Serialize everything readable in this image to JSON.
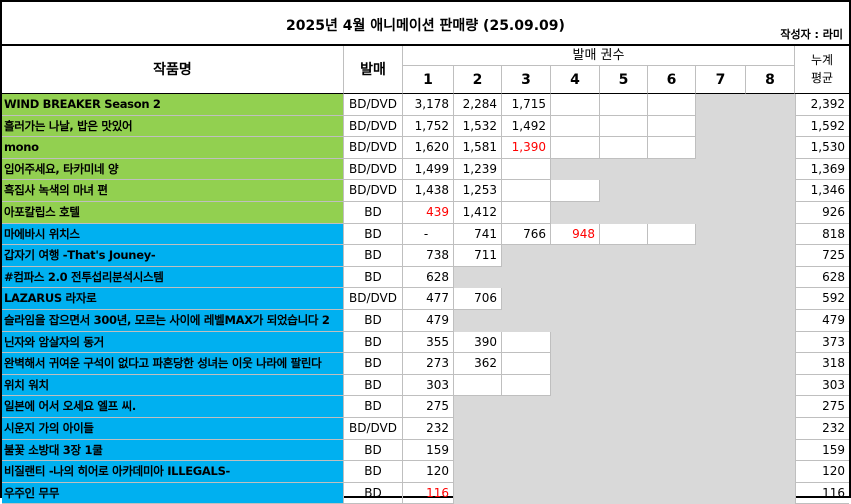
{
  "title": "2025년 4월 애니메이션 판매량 (25.09.09)",
  "author": "작성자 : 라미",
  "headers": {
    "work": "작품명",
    "release": "발매",
    "volumes_group": "발매 권수",
    "avg_line1": "누계",
    "avg_line2": "평균",
    "volume_numbers": [
      "1",
      "2",
      "3",
      "4",
      "5",
      "6",
      "7",
      "8"
    ]
  },
  "colors": {
    "green_group": "#92d050",
    "blue_group": "#00b0f0",
    "disabled_cell": "#d9d9d9",
    "highlight_text": "#ff0000"
  },
  "rows": [
    {
      "name": "WIND BREAKER Season 2",
      "group": "green",
      "media": "BD/DVD",
      "vols": [
        "3,178",
        "2,284",
        "1,715",
        "",
        "",
        "",
        "",
        ""
      ],
      "disabled_from": 7,
      "red": [],
      "avg": "2,392"
    },
    {
      "name": "흘러가는 나날, 밥은 맛있어",
      "group": "green",
      "media": "BD/DVD",
      "vols": [
        "1,752",
        "1,532",
        "1,492",
        "",
        "",
        "",
        "",
        ""
      ],
      "disabled_from": 7,
      "red": [],
      "avg": "1,592"
    },
    {
      "name": "mono",
      "group": "green",
      "media": "BD/DVD",
      "vols": [
        "1,620",
        "1,581",
        "1,390",
        "",
        "",
        "",
        "",
        ""
      ],
      "disabled_from": 7,
      "red": [
        3
      ],
      "avg": "1,530"
    },
    {
      "name": "입어주세요, 타카미네 양",
      "group": "green",
      "media": "BD/DVD",
      "vols": [
        "1,499",
        "1,239",
        "",
        "",
        "",
        "",
        "",
        ""
      ],
      "disabled_from": 4,
      "red": [],
      "avg": "1,369"
    },
    {
      "name": "흑집사 녹색의 마녀 편",
      "group": "green",
      "media": "BD/DVD",
      "vols": [
        "1,438",
        "1,253",
        "",
        "",
        "",
        "",
        "",
        ""
      ],
      "disabled_from": 5,
      "red": [],
      "avg": "1,346"
    },
    {
      "name": "아포칼립스 호텔",
      "group": "green",
      "media": "BD",
      "vols": [
        "439",
        "1,412",
        "",
        "",
        "",
        "",
        "",
        ""
      ],
      "disabled_from": 4,
      "red": [
        1
      ],
      "avg": "926"
    },
    {
      "name": "마에바시 위치스",
      "group": "blue",
      "media": "BD",
      "vols": [
        "-",
        "741",
        "766",
        "948",
        "",
        "",
        "",
        ""
      ],
      "disabled_from": 7,
      "red": [
        4
      ],
      "avg": "818"
    },
    {
      "name": "갑자기 여행 -That's Jouney-",
      "group": "blue",
      "media": "BD",
      "vols": [
        "738",
        "711",
        "",
        "",
        "",
        "",
        "",
        ""
      ],
      "disabled_from": 3,
      "red": [],
      "avg": "725"
    },
    {
      "name": "#컴파스 2.0 전투섭리분석시스템",
      "group": "blue",
      "media": "BD",
      "vols": [
        "628",
        "",
        "",
        "",
        "",
        "",
        "",
        ""
      ],
      "disabled_from": 2,
      "red": [],
      "avg": "628"
    },
    {
      "name": "LAZARUS 라자로",
      "group": "blue",
      "media": "BD/DVD",
      "vols": [
        "477",
        "706",
        "",
        "",
        "",
        "",
        "",
        ""
      ],
      "disabled_from": 3,
      "red": [],
      "avg": "592"
    },
    {
      "name": "슬라임을 잡으면서 300년, 모르는 사이에 레벨MAX가 되었습니다 2",
      "group": "blue",
      "media": "BD",
      "vols": [
        "479",
        "",
        "",
        "",
        "",
        "",
        "",
        ""
      ],
      "disabled_from": 2,
      "red": [],
      "avg": "479"
    },
    {
      "name": "닌자와 암살자의 동거",
      "group": "blue",
      "media": "BD",
      "vols": [
        "355",
        "390",
        "",
        "",
        "",
        "",
        "",
        ""
      ],
      "disabled_from": 4,
      "red": [],
      "avg": "373"
    },
    {
      "name": "완벽해서 귀여운 구석이 없다고 파혼당한 성녀는 이웃 나라에 팔린다",
      "group": "blue",
      "media": "BD",
      "vols": [
        "273",
        "362",
        "",
        "",
        "",
        "",
        "",
        ""
      ],
      "disabled_from": 4,
      "red": [],
      "avg": "318"
    },
    {
      "name": "위치 워치",
      "group": "blue",
      "media": "BD",
      "vols": [
        "303",
        "",
        "",
        "",
        "",
        "",
        "",
        ""
      ],
      "disabled_from": 4,
      "red": [],
      "avg": "303"
    },
    {
      "name": "일본에 어서 오세요 엘프 씨.",
      "group": "blue",
      "media": "BD",
      "vols": [
        "275",
        "",
        "",
        "",
        "",
        "",
        "",
        ""
      ],
      "disabled_from": 2,
      "red": [],
      "avg": "275"
    },
    {
      "name": "시운지 가의 아이들",
      "group": "blue",
      "media": "BD/DVD",
      "vols": [
        "232",
        "",
        "",
        "",
        "",
        "",
        "",
        ""
      ],
      "disabled_from": 2,
      "red": [],
      "avg": "232"
    },
    {
      "name": "불꽃 소방대 3장 1쿨",
      "group": "blue",
      "media": "BD",
      "vols": [
        "159",
        "",
        "",
        "",
        "",
        "",
        "",
        ""
      ],
      "disabled_from": 2,
      "red": [],
      "avg": "159"
    },
    {
      "name": "비질랜티 -나의 히어로 아카데미아 ILLEGALS-",
      "group": "blue",
      "media": "BD",
      "vols": [
        "120",
        "",
        "",
        "",
        "",
        "",
        "",
        ""
      ],
      "disabled_from": 2,
      "red": [],
      "avg": "120"
    },
    {
      "name": "우주인 무무",
      "group": "blue",
      "media": "BD",
      "vols": [
        "116",
        "",
        "",
        "",
        "",
        "",
        "",
        ""
      ],
      "disabled_from": 2,
      "red": [
        1
      ],
      "avg": "116"
    }
  ]
}
